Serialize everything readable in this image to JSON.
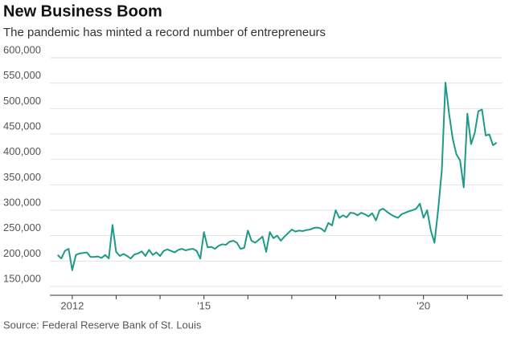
{
  "chart_data": {
    "type": "line",
    "title": "New Business Boom",
    "subtitle": "The pandemic has minted a record number of entrepreneurs",
    "source": "Source: Federal Reserve Bank of St. Louis",
    "x": [
      2011.667,
      2011.75,
      2011.833,
      2011.917,
      2012,
      2012.083,
      2012.167,
      2012.25,
      2012.333,
      2012.417,
      2012.5,
      2012.583,
      2012.667,
      2012.75,
      2012.833,
      2012.917,
      2013,
      2013.083,
      2013.167,
      2013.25,
      2013.333,
      2013.417,
      2013.5,
      2013.583,
      2013.667,
      2013.75,
      2013.833,
      2013.917,
      2014,
      2014.083,
      2014.167,
      2014.25,
      2014.333,
      2014.417,
      2014.5,
      2014.583,
      2014.667,
      2014.75,
      2014.833,
      2014.917,
      2015,
      2015.083,
      2015.167,
      2015.25,
      2015.333,
      2015.417,
      2015.5,
      2015.583,
      2015.667,
      2015.75,
      2015.833,
      2015.917,
      2016,
      2016.083,
      2016.167,
      2016.25,
      2016.333,
      2016.417,
      2016.5,
      2016.583,
      2016.667,
      2016.75,
      2016.833,
      2016.917,
      2017,
      2017.083,
      2017.167,
      2017.25,
      2017.333,
      2017.417,
      2017.5,
      2017.583,
      2017.667,
      2017.75,
      2017.833,
      2017.917,
      2018,
      2018.083,
      2018.167,
      2018.25,
      2018.333,
      2018.417,
      2018.5,
      2018.583,
      2018.667,
      2018.75,
      2018.833,
      2018.917,
      2019,
      2019.083,
      2019.167,
      2019.25,
      2019.333,
      2019.417,
      2019.5,
      2019.583,
      2019.667,
      2019.75,
      2019.833,
      2019.917,
      2020,
      2020.083,
      2020.167,
      2020.25,
      2020.333,
      2020.417,
      2020.5,
      2020.583,
      2020.667,
      2020.75,
      2020.833,
      2020.917,
      2021,
      2021.083,
      2021.167,
      2021.25,
      2021.333,
      2021.417,
      2021.5,
      2021.583,
      2021.667
    ],
    "series": [
      {
        "color": "#1e9a86",
        "values": [
          212000,
          205000,
          220000,
          224000,
          182000,
          212000,
          215000,
          216000,
          217000,
          208000,
          208000,
          209000,
          206000,
          212000,
          205000,
          271000,
          218000,
          210000,
          214000,
          210000,
          205000,
          213000,
          215000,
          219000,
          210000,
          222000,
          212000,
          217000,
          210000,
          220000,
          223000,
          220000,
          217000,
          222000,
          224000,
          221000,
          223000,
          224000,
          220000,
          205000,
          257000,
          227000,
          228000,
          224000,
          230000,
          233000,
          232000,
          238000,
          240000,
          236000,
          224000,
          226000,
          260000,
          240000,
          236000,
          242000,
          248000,
          218000,
          257000,
          245000,
          250000,
          240000,
          248000,
          255000,
          262000,
          258000,
          260000,
          259000,
          261000,
          262000,
          265000,
          266000,
          264000,
          258000,
          275000,
          270000,
          300000,
          285000,
          290000,
          286000,
          295000,
          294000,
          290000,
          295000,
          292000,
          288000,
          294000,
          280000,
          300000,
          303000,
          297000,
          292000,
          288000,
          285000,
          292000,
          295000,
          298000,
          300000,
          303000,
          313000,
          285000,
          300000,
          260000,
          236000,
          300000,
          378000,
          551000,
          490000,
          440000,
          410000,
          398000,
          345000,
          490000,
          430000,
          452000,
          495000,
          498000,
          447000,
          449000,
          428000,
          433000
        ]
      }
    ],
    "xlim": [
      2011.49,
      2021.8
    ],
    "xticks": [
      {
        "value": 2012,
        "label": "2012"
      },
      {
        "value": 2015,
        "label": "'15"
      },
      {
        "value": 2020,
        "label": "'20"
      }
    ],
    "xminorticks": [
      2012,
      2013,
      2014,
      2015,
      2016,
      2017,
      2018,
      2019,
      2020,
      2021
    ],
    "ylim": [
      150000,
      600000
    ],
    "yticks": [
      {
        "value": 150000,
        "label": "150,000"
      },
      {
        "value": 200000,
        "label": "200,000"
      },
      {
        "value": 250000,
        "label": "250,000"
      },
      {
        "value": 300000,
        "label": "300,000"
      },
      {
        "value": 350000,
        "label": "350,000"
      },
      {
        "value": 400000,
        "label": "400,000"
      },
      {
        "value": 450000,
        "label": "450,000"
      },
      {
        "value": 500000,
        "label": "500,000"
      },
      {
        "value": 550000,
        "label": "550,000"
      },
      {
        "value": 600000,
        "label": "600,000"
      }
    ],
    "grid": true
  }
}
